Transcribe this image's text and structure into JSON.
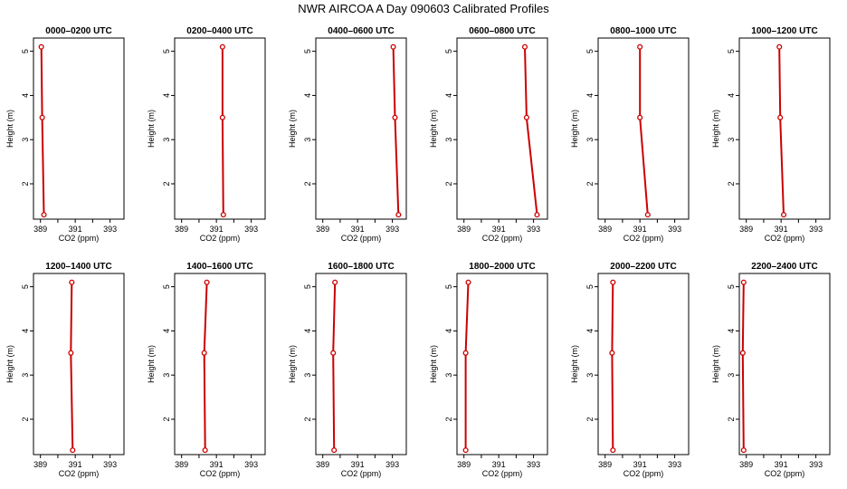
{
  "page_title": "NWR AIRCOA A  Day 090603  Calibrated Profiles",
  "chart_data": {
    "type": "line",
    "xlabel": "CO2 (ppm)",
    "ylabel": "Height (m)",
    "xlim": [
      388.6,
      393.8
    ],
    "ylim": [
      1.2,
      5.3
    ],
    "xticks": [
      389,
      391,
      393
    ],
    "xticks_minor": [
      390,
      392
    ],
    "yticks": [
      2,
      3,
      4,
      5
    ],
    "heights": [
      5.1,
      3.5,
      1.3
    ],
    "line_color": "#cc0000",
    "marker_color": "#cc0000",
    "panels": [
      {
        "title": "0000–0200 UTC",
        "co2": [
          389.05,
          389.1,
          389.2
        ]
      },
      {
        "title": "0200–0400 UTC",
        "co2": [
          391.35,
          391.35,
          391.4
        ]
      },
      {
        "title": "0400–0600 UTC",
        "co2": [
          393.05,
          393.15,
          393.35
        ]
      },
      {
        "title": "0600–0800 UTC",
        "co2": [
          392.5,
          392.6,
          393.2
        ]
      },
      {
        "title": "0800–1000 UTC",
        "co2": [
          391.0,
          391.0,
          391.45
        ]
      },
      {
        "title": "1000–1200 UTC",
        "co2": [
          390.9,
          390.95,
          391.15
        ]
      },
      {
        "title": "1200–1400 UTC",
        "co2": [
          390.8,
          390.75,
          390.85
        ]
      },
      {
        "title": "1400–1600 UTC",
        "co2": [
          390.45,
          390.3,
          390.35
        ]
      },
      {
        "title": "1600–1800 UTC",
        "co2": [
          389.7,
          389.6,
          389.65
        ]
      },
      {
        "title": "1800–2000 UTC",
        "co2": [
          389.25,
          389.1,
          389.1
        ]
      },
      {
        "title": "2000–2200 UTC",
        "co2": [
          389.45,
          389.4,
          389.45
        ]
      },
      {
        "title": "2200–2400 UTC",
        "co2": [
          388.85,
          388.8,
          388.85
        ]
      }
    ]
  }
}
